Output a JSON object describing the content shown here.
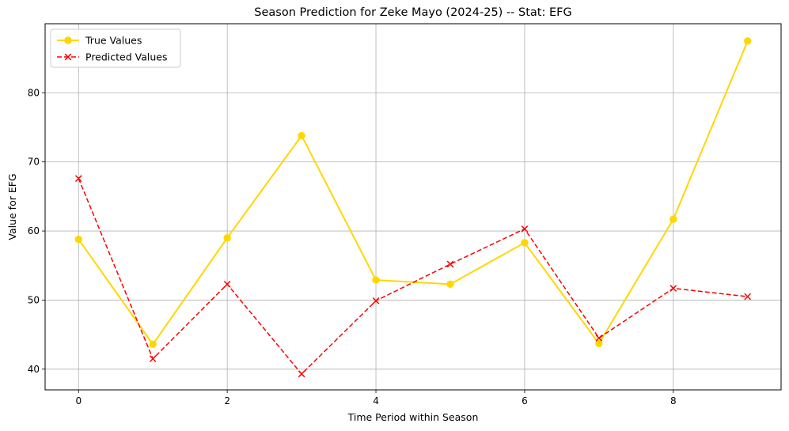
{
  "chart_data": {
    "type": "line",
    "title": "Season Prediction for Zeke Mayo (2024-25) -- Stat: EFG",
    "xlabel": "Time Period within Season",
    "ylabel": "Value for EFG",
    "x": [
      0,
      1,
      2,
      3,
      4,
      5,
      6,
      7,
      8,
      9
    ],
    "xlim": [
      -0.45,
      9.45
    ],
    "ylim": [
      37.0,
      90.0
    ],
    "xticks": [
      0,
      2,
      4,
      6,
      8
    ],
    "yticks": [
      40,
      50,
      60,
      70,
      80
    ],
    "grid": true,
    "legend_position": "top-left",
    "series": [
      {
        "name": "True Values",
        "values": [
          58.8,
          43.6,
          59.0,
          73.8,
          52.9,
          52.3,
          58.3,
          43.7,
          61.7,
          87.5
        ],
        "color": "#FFD700",
        "style": "solid",
        "marker": "circle"
      },
      {
        "name": "Predicted Values",
        "values": [
          67.6,
          41.5,
          52.3,
          39.3,
          49.9,
          55.2,
          60.3,
          44.5,
          51.7,
          50.5
        ],
        "color": "#FF0000",
        "style": "dashed",
        "marker": "x"
      }
    ]
  }
}
